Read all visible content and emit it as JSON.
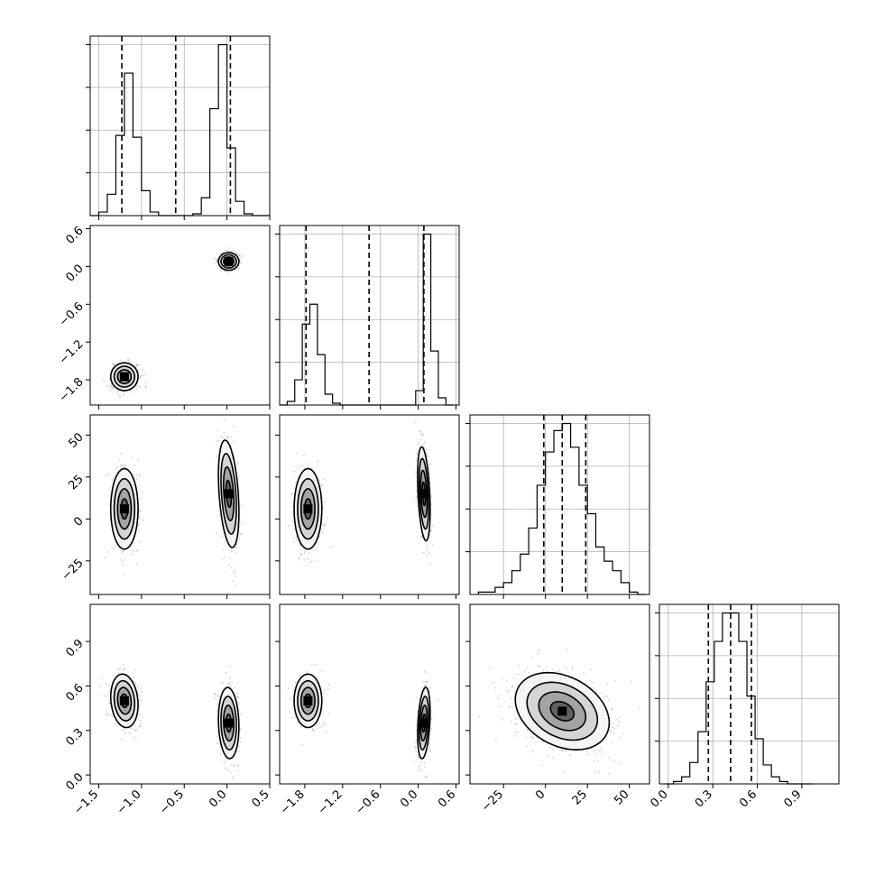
{
  "chart_data": {
    "type": "corner",
    "parameters": [
      {
        "range": [
          -1.6,
          0.5
        ],
        "ticks": [
          -1.5,
          -1.0,
          -0.5,
          0.0,
          0.5
        ],
        "tick_labels": [
          "−1.5",
          "−1.0",
          "−0.5",
          "0.0",
          "0.5"
        ],
        "quantiles": [
          -1.23,
          -0.6,
          0.04
        ]
      },
      {
        "range": [
          -2.2,
          0.65
        ],
        "ticks": [
          -1.8,
          -1.2,
          -0.6,
          0.0,
          0.6
        ],
        "tick_labels": [
          "−1.8",
          "−1.2",
          "−0.6",
          "0.0",
          "0.6"
        ],
        "quantiles": [
          -1.78,
          -0.78,
          0.09
        ]
      },
      {
        "range": [
          -45,
          62
        ],
        "ticks": [
          -25,
          0,
          25,
          50
        ],
        "tick_labels": [
          "−25",
          "0",
          "25",
          "50"
        ],
        "quantiles": [
          -1,
          10,
          24
        ]
      },
      {
        "range": [
          -0.06,
          1.15
        ],
        "ticks": [
          0.0,
          0.3,
          0.6,
          0.9
        ],
        "tick_labels": [
          "0.0",
          "0.3",
          "0.6",
          "0.9"
        ],
        "quantiles": [
          0.27,
          0.42,
          0.56
        ]
      }
    ],
    "histograms": [
      {
        "param": 0,
        "edges": [
          -1.6,
          -1.5,
          -1.4,
          -1.3,
          -1.2,
          -1.1,
          -1.0,
          -0.9,
          -0.8,
          -0.7,
          -0.6,
          -0.5,
          -0.4,
          -0.3,
          -0.2,
          -0.1,
          0.0,
          0.1,
          0.2,
          0.3,
          0.4,
          0.5
        ],
        "counts": [
          0,
          2,
          12,
          45,
          80,
          44,
          14,
          2,
          0,
          0,
          0,
          0,
          1,
          10,
          60,
          96,
          38,
          8,
          1,
          0,
          0
        ]
      },
      {
        "param": 1,
        "edges": [
          -2.2,
          -2.08,
          -1.96,
          -1.84,
          -1.72,
          -1.6,
          -1.48,
          -1.36,
          -1.24,
          -1.12,
          -1.0,
          -0.88,
          -0.76,
          -0.64,
          -0.52,
          -0.4,
          -0.28,
          -0.16,
          -0.04,
          0.08,
          0.2,
          0.32,
          0.44,
          0.56
        ],
        "counts": [
          0,
          2,
          14,
          45,
          56,
          28,
          6,
          1,
          0,
          0,
          0,
          0,
          0,
          0,
          0,
          0,
          0,
          0,
          8,
          95,
          30,
          4,
          0
        ]
      },
      {
        "param": 2,
        "edges": [
          -40,
          -35,
          -30,
          -25,
          -20,
          -15,
          -10,
          -5,
          0,
          5,
          10,
          15,
          20,
          25,
          30,
          35,
          40,
          45,
          50,
          55,
          60
        ],
        "counts": [
          1,
          1,
          3,
          5,
          10,
          17,
          28,
          46,
          60,
          69,
          72,
          62,
          46,
          34,
          20,
          14,
          10,
          5,
          1,
          0
        ]
      },
      {
        "param": 3,
        "edges": [
          -0.02,
          0.035,
          0.09,
          0.145,
          0.2,
          0.255,
          0.31,
          0.365,
          0.42,
          0.475,
          0.53,
          0.585,
          0.64,
          0.695,
          0.75,
          0.805,
          0.86,
          0.915,
          0.97
        ],
        "counts": [
          0,
          1,
          3,
          9,
          22,
          43,
          60,
          72,
          72,
          60,
          37,
          19,
          8,
          3,
          1,
          0,
          0,
          0
        ]
      }
    ],
    "pairs": [
      {
        "x": 0,
        "y": 1,
        "clusters": [
          {
            "mean": [
              -1.2,
              -1.75
            ],
            "sd": [
              0.08,
              0.11
            ],
            "rho": 0,
            "w": 0.5
          },
          {
            "mean": [
              0.02,
              0.08
            ],
            "sd": [
              0.06,
              0.07
            ],
            "rho": 0,
            "w": 0.5
          }
        ]
      },
      {
        "x": 0,
        "y": 2,
        "clusters": [
          {
            "mean": [
              -1.2,
              6
            ],
            "sd": [
              0.08,
              12
            ],
            "rho": 0,
            "w": 0.5
          },
          {
            "mean": [
              0.02,
              15
            ],
            "sd": [
              0.06,
              16
            ],
            "rho": -0.35,
            "w": 0.5
          }
        ]
      },
      {
        "x": 1,
        "y": 2,
        "clusters": [
          {
            "mean": [
              -1.75,
              6
            ],
            "sd": [
              0.11,
              12
            ],
            "rho": 0,
            "w": 0.5
          },
          {
            "mean": [
              0.09,
              15
            ],
            "sd": [
              0.05,
              14
            ],
            "rho": -0.35,
            "w": 0.5
          }
        ]
      },
      {
        "x": 0,
        "y": 3,
        "clusters": [
          {
            "mean": [
              -1.2,
              0.5
            ],
            "sd": [
              0.08,
              0.09
            ],
            "rho": -0.15,
            "w": 0.5
          },
          {
            "mean": [
              0.02,
              0.35
            ],
            "sd": [
              0.06,
              0.12
            ],
            "rho": -0.1,
            "w": 0.5
          }
        ]
      },
      {
        "x": 1,
        "y": 3,
        "clusters": [
          {
            "mean": [
              -1.75,
              0.5
            ],
            "sd": [
              0.11,
              0.09
            ],
            "rho": 0,
            "w": 0.5
          },
          {
            "mean": [
              0.09,
              0.35
            ],
            "sd": [
              0.05,
              0.12
            ],
            "rho": 0.3,
            "w": 0.5
          }
        ]
      },
      {
        "x": 2,
        "y": 3,
        "clusters": [
          {
            "mean": [
              10,
              0.43
            ],
            "sd": [
              14,
              0.13
            ],
            "rho": -0.3,
            "w": 1
          }
        ]
      }
    ],
    "contour_levels_sigma": [
      0.5,
      1,
      1.5,
      2
    ],
    "grid": true,
    "title": "",
    "xlabel": "",
    "ylabel": ""
  }
}
